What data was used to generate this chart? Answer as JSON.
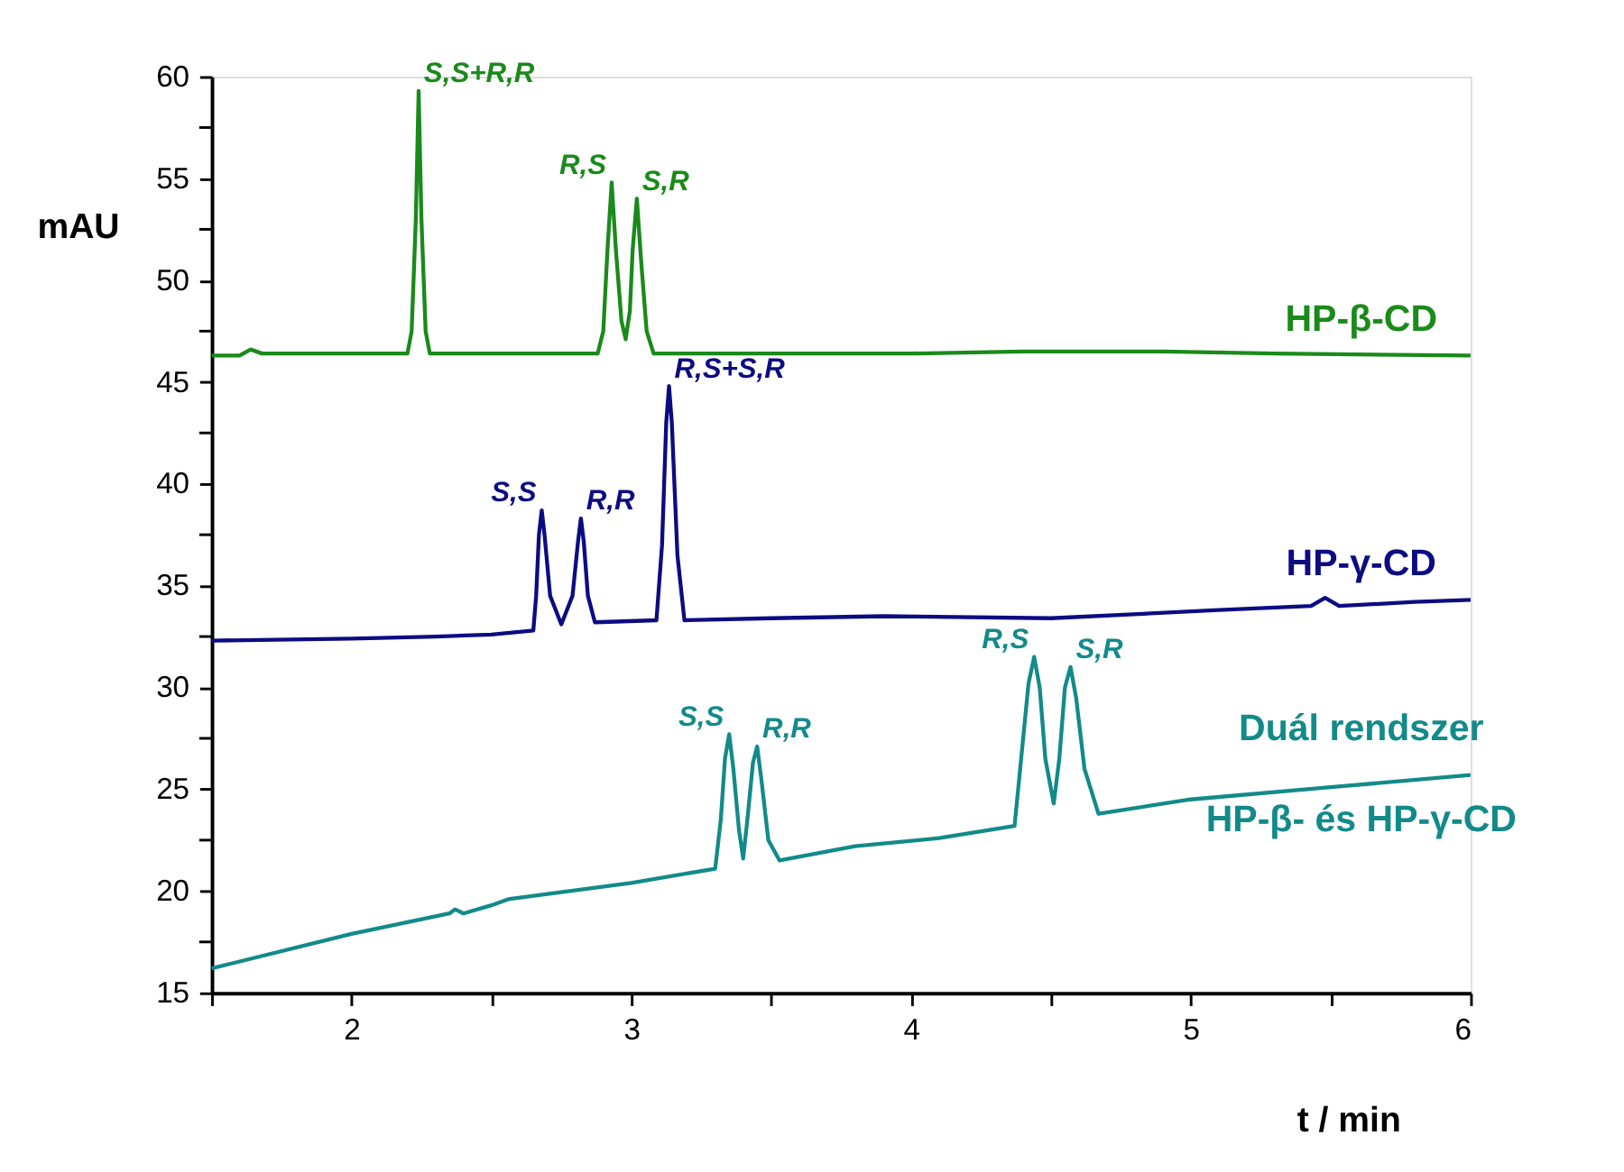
{
  "chart_data": {
    "type": "line",
    "xlabel": "t / min",
    "ylabel": "mAU",
    "xlim": [
      1.5,
      6
    ],
    "ylim": [
      15,
      60
    ],
    "xticks": [
      {
        "value": 1.5,
        "label": null
      },
      2,
      {
        "value": 2.5,
        "label": null
      },
      3,
      {
        "value": 3.5,
        "label": null
      },
      4,
      {
        "value": 4.5,
        "label": null
      },
      5,
      {
        "value": 5.5,
        "label": null
      },
      6
    ],
    "yticks": [
      15,
      {
        "value": 17.5,
        "label": null
      },
      20,
      {
        "value": 22.5,
        "label": null
      },
      25,
      {
        "value": 27.5,
        "label": null
      },
      30,
      {
        "value": 32.5,
        "label": null
      },
      35,
      {
        "value": 37.5,
        "label": null
      },
      40,
      {
        "value": 42.5,
        "label": null
      },
      45,
      {
        "value": 47.5,
        "label": null
      },
      50,
      {
        "value": 52.5,
        "label": null
      },
      55,
      {
        "value": 57.5,
        "label": null
      },
      60
    ],
    "grid": false,
    "series": [
      {
        "name": "HP-β-CD",
        "color": "#1a8a1a",
        "x": [
          1.5,
          1.6,
          1.64,
          1.68,
          1.9,
          2.2,
          2.215,
          2.23,
          2.24,
          2.25,
          2.265,
          2.28,
          2.6,
          2.88,
          2.9,
          2.915,
          2.93,
          2.945,
          2.965,
          2.98,
          2.995,
          3.005,
          3.02,
          3.035,
          3.055,
          3.08,
          3.5,
          4.0,
          4.4,
          4.6,
          4.9,
          5.3,
          6.0
        ],
        "values": [
          46.3,
          46.3,
          46.6,
          46.4,
          46.4,
          46.4,
          47.5,
          53,
          59.3,
          53,
          47.5,
          46.4,
          46.4,
          46.4,
          47.5,
          51.5,
          54.8,
          51.5,
          48,
          47.1,
          48.5,
          51.5,
          54.0,
          51,
          47.5,
          46.4,
          46.4,
          46.4,
          46.5,
          46.5,
          46.5,
          46.4,
          46.3
        ]
      },
      {
        "name": "HP-γ-CD",
        "color": "#0c0c82",
        "x": [
          1.5,
          2.0,
          2.3,
          2.5,
          2.65,
          2.66,
          2.67,
          2.68,
          2.69,
          2.71,
          2.75,
          2.79,
          2.81,
          2.82,
          2.83,
          2.845,
          2.87,
          3.09,
          3.11,
          3.125,
          3.135,
          3.145,
          3.165,
          3.19,
          3.5,
          3.9,
          4.5,
          5.1,
          5.43,
          5.48,
          5.53,
          5.8,
          6.0
        ],
        "values": [
          32.3,
          32.4,
          32.5,
          32.6,
          32.8,
          34.5,
          37.5,
          38.7,
          37.5,
          34.5,
          33.1,
          34.5,
          37.2,
          38.3,
          37.2,
          34.5,
          33.2,
          33.3,
          37,
          43,
          44.8,
          43,
          36.5,
          33.3,
          33.4,
          33.5,
          33.4,
          33.8,
          34.0,
          34.4,
          34.0,
          34.2,
          34.3
        ]
      },
      {
        "name": "Duál rendszer\nHP-β- és HP-γ-CD",
        "color": "#138a8a",
        "x": [
          1.5,
          2.0,
          2.35,
          2.37,
          2.4,
          2.5,
          2.56,
          3.0,
          3.3,
          3.32,
          3.335,
          3.35,
          3.365,
          3.385,
          3.4,
          3.415,
          3.435,
          3.45,
          3.465,
          3.49,
          3.53,
          3.8,
          4.1,
          4.37,
          4.39,
          4.42,
          4.44,
          4.46,
          4.48,
          4.51,
          4.53,
          4.55,
          4.57,
          4.59,
          4.62,
          4.67,
          5.0,
          5.5,
          6.0
        ],
        "values": [
          16.2,
          17.9,
          18.9,
          19.1,
          18.9,
          19.3,
          19.6,
          20.4,
          21.1,
          23.5,
          26.5,
          27.7,
          26,
          23,
          21.6,
          23.5,
          26.3,
          27.1,
          25.5,
          22.5,
          21.5,
          22.2,
          22.6,
          23.2,
          26,
          30.2,
          31.5,
          30,
          26.5,
          24.3,
          26.5,
          30,
          31.0,
          29.5,
          26,
          23.8,
          24.5,
          25.1,
          25.7
        ]
      }
    ],
    "annotations": [
      {
        "text": "S,S+R,R",
        "x": 2.24,
        "y": 59.3
      },
      {
        "text": "R,S",
        "x": 2.93,
        "y": 54.8
      },
      {
        "text": "S,R",
        "x": 3.02,
        "y": 54.0
      },
      {
        "text": "S,S",
        "x": 2.68,
        "y": 38.7
      },
      {
        "text": "R,R",
        "x": 2.82,
        "y": 38.3
      },
      {
        "text": "R,S+S,R",
        "x": 3.135,
        "y": 44.8
      },
      {
        "text": "S,S",
        "x": 3.35,
        "y": 27.7
      },
      {
        "text": "R,R",
        "x": 3.45,
        "y": 27.1
      },
      {
        "text": "R,S",
        "x": 4.44,
        "y": 31.5
      },
      {
        "text": "S,R",
        "x": 4.57,
        "y": 31.0
      }
    ]
  }
}
